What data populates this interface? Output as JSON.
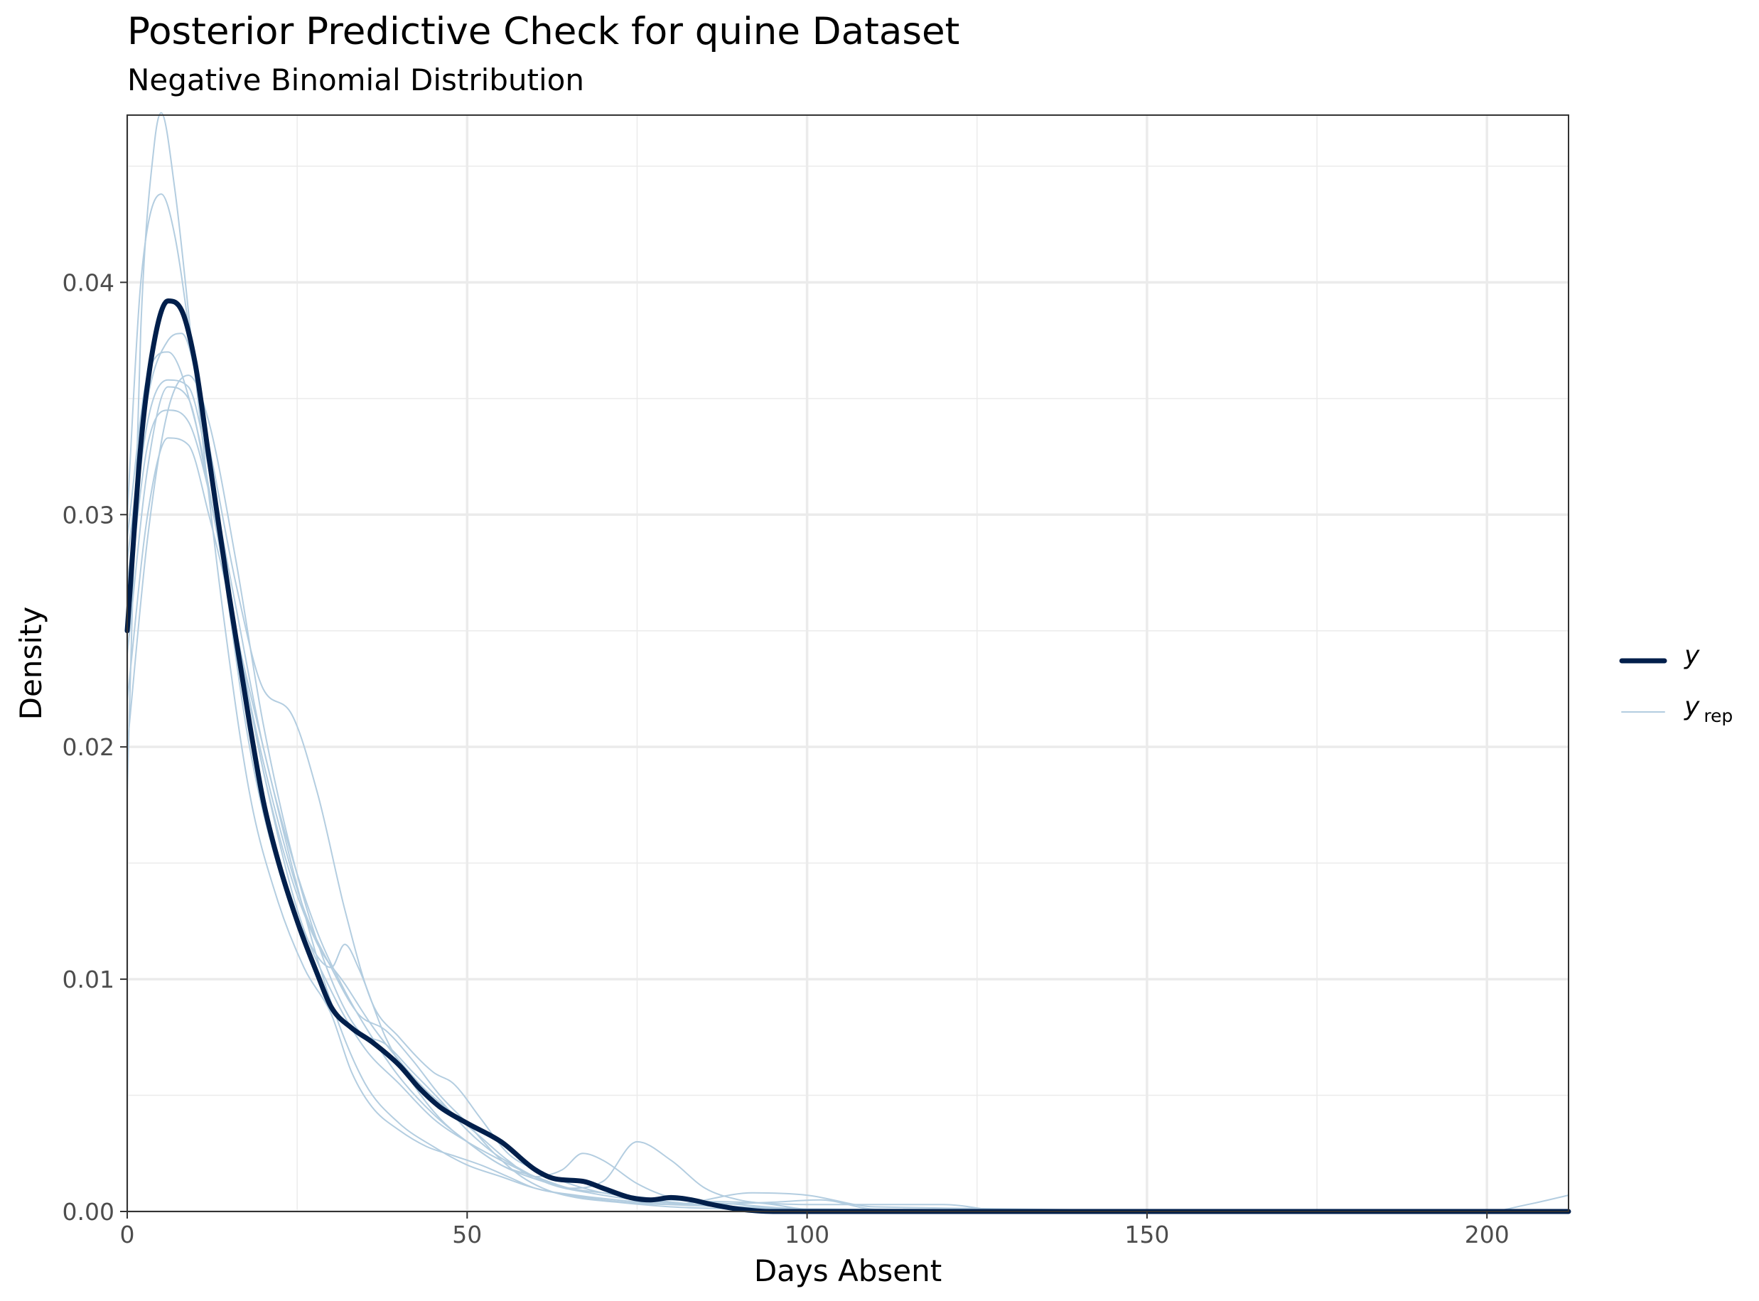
{
  "chart_data": {
    "type": "line",
    "title": "Posterior Predictive Check for quine Dataset",
    "subtitle": "Negative Binomial Distribution",
    "xlabel": "Days Absent",
    "ylabel": "Density",
    "xlim": [
      0,
      212
    ],
    "ylim": [
      0,
      0.0472
    ],
    "xticks": [
      0,
      50,
      100,
      150,
      200
    ],
    "xtick_labels": [
      "0",
      "50",
      "100",
      "150",
      "200"
    ],
    "yticks": [
      0,
      0.01,
      0.02,
      0.03,
      0.04
    ],
    "ytick_labels": [
      "0.00",
      "0.01",
      "0.02",
      "0.03",
      "0.04"
    ],
    "grid": true,
    "legend_position": "right",
    "legend": [
      {
        "key": "y",
        "label": "y",
        "sub": "",
        "color": "#011f4b"
      },
      {
        "key": "yrep",
        "label": "y",
        "sub": "rep",
        "color": "#b3cde0"
      }
    ],
    "series": [
      {
        "legend_key": "y",
        "color": "#011f4b",
        "x": [
          0,
          2,
          4,
          6,
          8,
          10,
          12,
          15,
          18,
          20,
          22,
          25,
          28,
          30,
          33,
          36,
          40,
          43,
          46,
          50,
          55,
          60,
          63,
          67,
          70,
          74,
          77,
          80,
          83,
          86,
          90,
          95,
          100,
          212
        ],
        "y": [
          0.025,
          0.033,
          0.0375,
          0.0392,
          0.0388,
          0.0365,
          0.0325,
          0.0265,
          0.021,
          0.0177,
          0.0153,
          0.0125,
          0.0102,
          0.0088,
          0.0079,
          0.0073,
          0.0063,
          0.0053,
          0.0045,
          0.0038,
          0.003,
          0.0018,
          0.0014,
          0.0013,
          0.001,
          0.0006,
          0.0005,
          0.0006,
          0.0005,
          0.0003,
          0.0001,
          0.0,
          0.0,
          0.0
        ]
      },
      {
        "legend_key": "yrep",
        "color": "#b3cde0",
        "x": [
          0,
          2,
          4,
          5,
          7,
          10,
          14,
          18,
          22,
          26,
          30,
          33,
          36,
          40,
          44,
          48,
          52,
          56,
          60,
          66,
          72,
          80,
          90,
          100,
          110,
          212
        ],
        "y": [
          0.018,
          0.038,
          0.046,
          0.0473,
          0.044,
          0.036,
          0.026,
          0.018,
          0.0135,
          0.0105,
          0.0085,
          0.006,
          0.0045,
          0.0035,
          0.0028,
          0.0024,
          0.002,
          0.0015,
          0.001,
          0.0007,
          0.0005,
          0.0003,
          0.0002,
          0.0001,
          0.0,
          0.0
        ]
      },
      {
        "legend_key": "yrep",
        "color": "#b3cde0",
        "x": [
          0,
          2,
          5,
          7,
          10,
          14,
          18,
          22,
          26,
          30,
          32,
          34,
          38,
          42,
          46,
          50,
          55,
          60,
          65,
          70,
          75,
          80,
          90,
          100,
          212
        ],
        "y": [
          0.03,
          0.04,
          0.0438,
          0.042,
          0.036,
          0.028,
          0.02,
          0.015,
          0.012,
          0.0105,
          0.0115,
          0.0105,
          0.0075,
          0.0055,
          0.004,
          0.003,
          0.002,
          0.0014,
          0.001,
          0.0008,
          0.0006,
          0.0004,
          0.0002,
          0.0001,
          0.0
        ]
      },
      {
        "legend_key": "yrep",
        "color": "#b3cde0",
        "x": [
          0,
          3,
          6,
          8,
          12,
          16,
          20,
          24,
          28,
          32,
          36,
          40,
          45,
          48,
          52,
          56,
          60,
          65,
          70,
          75,
          80,
          90,
          100,
          212
        ],
        "y": [
          0.028,
          0.035,
          0.0375,
          0.0378,
          0.033,
          0.027,
          0.0225,
          0.0215,
          0.018,
          0.013,
          0.009,
          0.0075,
          0.006,
          0.0055,
          0.004,
          0.0025,
          0.0018,
          0.0012,
          0.0008,
          0.0006,
          0.0004,
          0.0002,
          0.0001,
          0.0
        ]
      },
      {
        "legend_key": "yrep",
        "color": "#b3cde0",
        "x": [
          0,
          3,
          6,
          9,
          12,
          16,
          20,
          24,
          28,
          32,
          36,
          40,
          44,
          48,
          52,
          56,
          60,
          64,
          67,
          70,
          75,
          80,
          90,
          100,
          212
        ],
        "y": [
          0.026,
          0.033,
          0.0345,
          0.034,
          0.031,
          0.025,
          0.019,
          0.0145,
          0.0115,
          0.0098,
          0.008,
          0.0065,
          0.0052,
          0.0042,
          0.0032,
          0.0022,
          0.0015,
          0.0018,
          0.0025,
          0.0022,
          0.0012,
          0.0006,
          0.0003,
          0.0001,
          0.0
        ]
      },
      {
        "legend_key": "yrep",
        "color": "#b3cde0",
        "x": [
          0,
          3,
          6,
          9,
          12,
          16,
          20,
          25,
          30,
          35,
          40,
          45,
          50,
          55,
          60,
          65,
          70,
          75,
          80,
          85,
          90,
          95,
          100,
          212
        ],
        "y": [
          0.022,
          0.03,
          0.0333,
          0.033,
          0.03,
          0.025,
          0.019,
          0.013,
          0.0095,
          0.007,
          0.0055,
          0.004,
          0.003,
          0.0022,
          0.0015,
          0.001,
          0.0013,
          0.003,
          0.0022,
          0.001,
          0.0005,
          0.0003,
          0.0001,
          0.0
        ]
      },
      {
        "legend_key": "yrep",
        "color": "#b3cde0",
        "x": [
          0,
          3,
          6,
          9,
          12,
          16,
          20,
          25,
          30,
          35,
          40,
          45,
          50,
          55,
          60,
          70,
          80,
          92,
          100,
          110,
          212
        ],
        "y": [
          0.024,
          0.032,
          0.0355,
          0.035,
          0.031,
          0.025,
          0.02,
          0.014,
          0.009,
          0.0055,
          0.0038,
          0.0028,
          0.002,
          0.0015,
          0.001,
          0.0005,
          0.0003,
          0.0008,
          0.0007,
          0.0002,
          0.0
        ]
      },
      {
        "legend_key": "yrep",
        "color": "#b3cde0",
        "x": [
          0,
          3,
          6,
          9,
          12,
          16,
          20,
          24,
          28,
          32,
          36,
          40,
          45,
          50,
          55,
          60,
          65,
          70,
          80,
          90,
          100,
          110,
          120,
          130,
          212
        ],
        "y": [
          0.027,
          0.034,
          0.0358,
          0.0355,
          0.032,
          0.026,
          0.02,
          0.0155,
          0.012,
          0.0095,
          0.0075,
          0.0058,
          0.0042,
          0.003,
          0.002,
          0.0015,
          0.001,
          0.0008,
          0.0005,
          0.0004,
          0.0003,
          0.0003,
          0.0003,
          0.0,
          0.0
        ]
      },
      {
        "legend_key": "yrep",
        "color": "#b3cde0",
        "x": [
          0,
          3,
          6,
          9,
          12,
          16,
          20,
          25,
          30,
          34,
          38,
          42,
          46,
          50,
          54,
          58,
          62,
          68,
          75,
          85,
          95,
          102,
          110,
          212
        ],
        "y": [
          0.02,
          0.029,
          0.0345,
          0.036,
          0.034,
          0.028,
          0.021,
          0.0145,
          0.01,
          0.0078,
          0.0072,
          0.006,
          0.0048,
          0.0035,
          0.0025,
          0.0018,
          0.0012,
          0.0008,
          0.0005,
          0.0003,
          0.0004,
          0.0005,
          0.0001,
          0.0
        ]
      },
      {
        "legend_key": "yrep",
        "color": "#b3cde0",
        "x": [
          0,
          3,
          6,
          10,
          14,
          18,
          22,
          26,
          30,
          34,
          38,
          42,
          46,
          50,
          54,
          58,
          62,
          66,
          72,
          80,
          90,
          100,
          200,
          206,
          212
        ],
        "y": [
          0.029,
          0.036,
          0.037,
          0.034,
          0.028,
          0.022,
          0.017,
          0.013,
          0.0105,
          0.0085,
          0.0078,
          0.0065,
          0.005,
          0.0038,
          0.0025,
          0.0015,
          0.0009,
          0.0006,
          0.0004,
          0.0002,
          0.0001,
          0.0,
          0.0,
          0.0003,
          0.0007
        ]
      }
    ]
  }
}
